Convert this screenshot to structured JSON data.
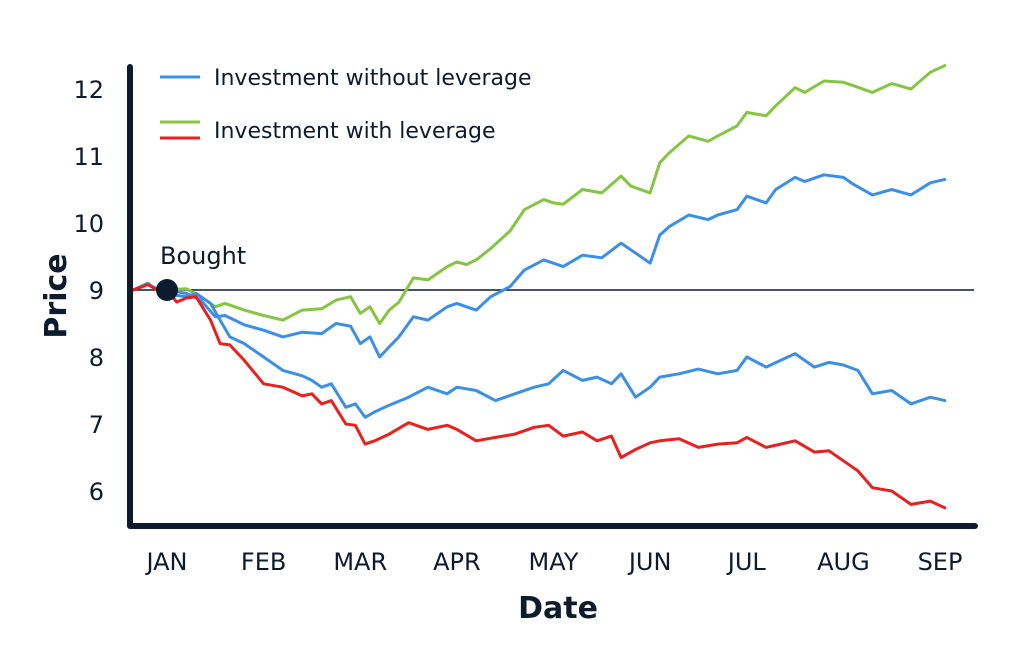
{
  "chart_data": {
    "type": "line",
    "xlabel": "Date",
    "ylabel": "Price",
    "ylim": [
      5.5,
      12.7
    ],
    "yticks": [
      6,
      7,
      8,
      9,
      10,
      11,
      12
    ],
    "months": [
      "JAN",
      "FEB",
      "MAR",
      "APR",
      "MAY",
      "JUN",
      "JUL",
      "AUG",
      "SEP"
    ],
    "xlim": [
      -0.04,
      8.08
    ],
    "reference_price": 9.0,
    "annotation": {
      "label": "Bought",
      "x": 0.0,
      "y": 9.0
    },
    "legend": {
      "position": "top-left"
    },
    "colors": {
      "without_leverage": "#3b8fe6",
      "with_leverage_up": "#86c443",
      "with_leverage_down": "#e8211f",
      "axis": "#0d1b2e"
    },
    "legend_entries": [
      "Investment without leverage",
      "Investment with leverage"
    ],
    "series": [
      {
        "key": "without_up",
        "legend": 0,
        "color": "#3b8fe6",
        "x": [
          -0.35,
          -0.2,
          -0.1,
          0.0,
          0.2,
          0.35,
          0.5,
          0.6,
          0.8,
          1.0,
          1.2,
          1.4,
          1.6,
          1.75,
          1.9,
          2.0,
          2.1,
          2.2,
          2.3,
          2.4,
          2.55,
          2.7,
          2.9,
          3.0,
          3.1,
          3.2,
          3.35,
          3.55,
          3.7,
          3.9,
          4.0,
          4.1,
          4.3,
          4.5,
          4.7,
          4.8,
          5.0,
          5.1,
          5.2,
          5.4,
          5.6,
          5.7,
          5.9,
          6.0,
          6.2,
          6.3,
          6.5,
          6.6,
          6.8,
          7.0,
          7.1,
          7.3,
          7.5,
          7.7,
          7.9,
          8.05
        ],
        "y": [
          9.0,
          9.08,
          9.02,
          9.0,
          8.95,
          8.85,
          8.6,
          8.62,
          8.48,
          8.4,
          8.3,
          8.37,
          8.35,
          8.5,
          8.46,
          8.2,
          8.3,
          8.0,
          8.15,
          8.3,
          8.6,
          8.55,
          8.75,
          8.8,
          8.75,
          8.7,
          8.9,
          9.05,
          9.3,
          9.45,
          9.4,
          9.35,
          9.52,
          9.48,
          9.7,
          9.6,
          9.4,
          9.82,
          9.95,
          10.12,
          10.05,
          10.12,
          10.2,
          10.4,
          10.3,
          10.5,
          10.68,
          10.62,
          10.72,
          10.68,
          10.58,
          10.42,
          10.5,
          10.42,
          10.6,
          10.65
        ]
      },
      {
        "key": "with_up",
        "legend": 1,
        "color": "#86c443",
        "x": [
          -0.35,
          -0.2,
          -0.1,
          0.0,
          0.2,
          0.35,
          0.5,
          0.6,
          0.8,
          1.0,
          1.2,
          1.4,
          1.6,
          1.75,
          1.9,
          2.0,
          2.1,
          2.2,
          2.3,
          2.4,
          2.55,
          2.7,
          2.9,
          3.0,
          3.1,
          3.2,
          3.35,
          3.55,
          3.7,
          3.9,
          4.0,
          4.1,
          4.3,
          4.5,
          4.7,
          4.8,
          5.0,
          5.1,
          5.2,
          5.4,
          5.6,
          5.7,
          5.9,
          6.0,
          6.2,
          6.3,
          6.5,
          6.6,
          6.8,
          7.0,
          7.1,
          7.3,
          7.5,
          7.7,
          7.9,
          8.05
        ],
        "y": [
          9.0,
          9.1,
          9.0,
          9.0,
          9.02,
          8.9,
          8.75,
          8.8,
          8.7,
          8.62,
          8.55,
          8.7,
          8.72,
          8.85,
          8.9,
          8.65,
          8.75,
          8.5,
          8.7,
          8.82,
          9.18,
          9.15,
          9.35,
          9.42,
          9.38,
          9.45,
          9.62,
          9.88,
          10.2,
          10.35,
          10.3,
          10.28,
          10.5,
          10.45,
          10.7,
          10.55,
          10.45,
          10.9,
          11.05,
          11.3,
          11.22,
          11.3,
          11.45,
          11.65,
          11.6,
          11.75,
          12.02,
          11.95,
          12.12,
          12.1,
          12.05,
          11.95,
          12.08,
          12.0,
          12.25,
          12.35
        ]
      },
      {
        "key": "without_down",
        "legend": 0,
        "color": "#3b8fe6",
        "x": [
          -0.35,
          -0.2,
          -0.1,
          0.0,
          0.1,
          0.2,
          0.3,
          0.45,
          0.55,
          0.65,
          0.8,
          1.0,
          1.2,
          1.4,
          1.5,
          1.6,
          1.7,
          1.85,
          1.95,
          2.05,
          2.15,
          2.3,
          2.5,
          2.7,
          2.9,
          3.0,
          3.2,
          3.4,
          3.6,
          3.8,
          3.95,
          4.1,
          4.3,
          4.45,
          4.6,
          4.7,
          4.85,
          5.0,
          5.1,
          5.3,
          5.5,
          5.7,
          5.9,
          6.0,
          6.2,
          6.35,
          6.5,
          6.7,
          6.85,
          7.0,
          7.15,
          7.3,
          7.5,
          7.7,
          7.9,
          8.05
        ],
        "y": [
          9.0,
          9.1,
          9.0,
          9.0,
          8.92,
          8.9,
          8.95,
          8.8,
          8.55,
          8.3,
          8.2,
          8.0,
          7.8,
          7.72,
          7.65,
          7.55,
          7.6,
          7.25,
          7.3,
          7.1,
          7.18,
          7.28,
          7.4,
          7.55,
          7.45,
          7.55,
          7.5,
          7.35,
          7.45,
          7.55,
          7.6,
          7.8,
          7.65,
          7.7,
          7.6,
          7.75,
          7.4,
          7.55,
          7.7,
          7.75,
          7.82,
          7.75,
          7.8,
          8.0,
          7.85,
          7.95,
          8.05,
          7.85,
          7.92,
          7.88,
          7.8,
          7.45,
          7.5,
          7.3,
          7.4,
          7.35
        ]
      },
      {
        "key": "with_down",
        "legend": 1,
        "color": "#e8211f",
        "x": [
          -0.35,
          -0.2,
          -0.1,
          0.0,
          0.1,
          0.2,
          0.3,
          0.45,
          0.55,
          0.65,
          0.8,
          1.0,
          1.2,
          1.4,
          1.5,
          1.6,
          1.7,
          1.85,
          1.95,
          2.05,
          2.15,
          2.3,
          2.5,
          2.7,
          2.9,
          3.0,
          3.2,
          3.4,
          3.6,
          3.8,
          3.95,
          4.1,
          4.3,
          4.45,
          4.6,
          4.7,
          4.85,
          5.0,
          5.1,
          5.3,
          5.5,
          5.7,
          5.9,
          6.0,
          6.2,
          6.35,
          6.5,
          6.7,
          6.85,
          7.0,
          7.15,
          7.3,
          7.5,
          7.7,
          7.9,
          8.05
        ],
        "y": [
          9.0,
          9.08,
          9.0,
          9.0,
          8.82,
          8.88,
          8.9,
          8.55,
          8.2,
          8.18,
          7.95,
          7.6,
          7.55,
          7.42,
          7.45,
          7.3,
          7.35,
          7.0,
          6.98,
          6.7,
          6.75,
          6.85,
          7.02,
          6.92,
          6.98,
          6.92,
          6.75,
          6.8,
          6.85,
          6.95,
          6.98,
          6.82,
          6.88,
          6.75,
          6.82,
          6.5,
          6.62,
          6.72,
          6.75,
          6.78,
          6.65,
          6.7,
          6.72,
          6.8,
          6.65,
          6.7,
          6.75,
          6.58,
          6.6,
          6.45,
          6.3,
          6.05,
          6.0,
          5.8,
          5.85,
          5.75
        ]
      }
    ]
  }
}
